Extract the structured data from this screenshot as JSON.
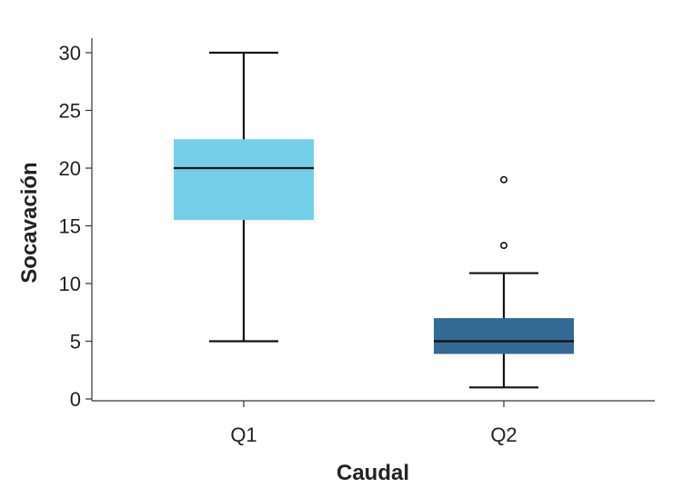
{
  "chart_data": {
    "type": "box",
    "xlabel": "Caudal",
    "ylabel": "Socavación",
    "ylim": [
      0,
      30
    ],
    "yticks": [
      0,
      5,
      10,
      15,
      20,
      25,
      30
    ],
    "categories": [
      "Q1",
      "Q2"
    ],
    "boxes": [
      {
        "name": "Q1",
        "whisker_low": 5,
        "q1": 15.5,
        "median": 20,
        "q3": 22.5,
        "whisker_high": 30,
        "outliers": [],
        "color": "#74cfe8"
      },
      {
        "name": "Q2",
        "whisker_low": 1,
        "q1": 3.9,
        "median": 5,
        "q3": 7,
        "whisker_high": 10.9,
        "outliers": [
          13.3,
          19
        ],
        "color": "#336a94"
      }
    ],
    "grid": false,
    "legend": "none"
  }
}
